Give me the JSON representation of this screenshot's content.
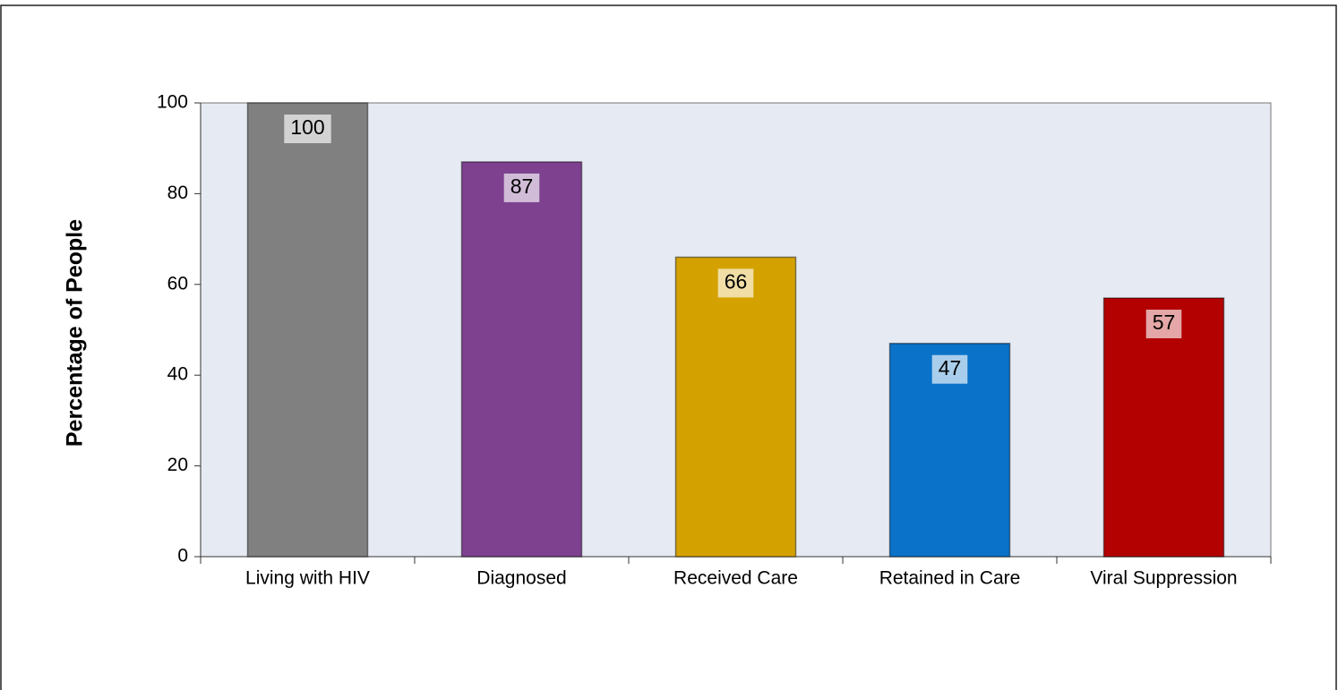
{
  "chart_data": {
    "type": "bar",
    "y_label": "Percentage of People",
    "categories": [
      "Living with HIV",
      "Diagnosed",
      "Received Care",
      "Retained in Care",
      "Viral Suppression"
    ],
    "values": [
      100,
      87,
      66,
      47,
      57
    ],
    "colors": [
      "#808080",
      "#7d418f",
      "#d4a200",
      "#0a72c8",
      "#b30000"
    ],
    "ylim": [
      0,
      100
    ],
    "yticks": [
      0,
      20,
      40,
      60,
      80,
      100
    ],
    "grid": false
  }
}
